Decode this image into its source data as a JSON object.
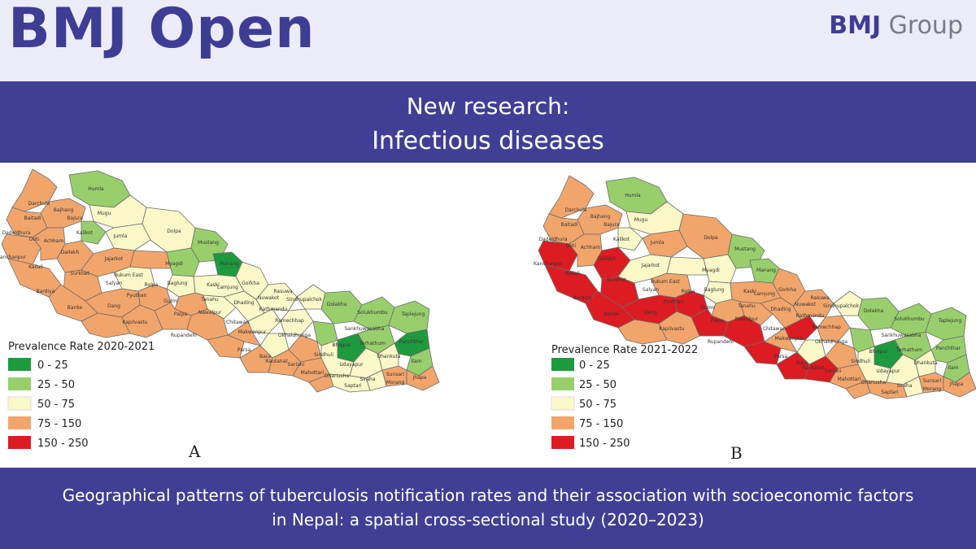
{
  "header": {
    "journal_title": "BMJ Open",
    "publisher_bold": "BMJ",
    "publisher_rest": "Group"
  },
  "banner": {
    "line1": "New research:",
    "line2": "Infectious diseases"
  },
  "legend_classes": [
    {
      "label": "0 - 25",
      "color": "#1e9a3e"
    },
    {
      "label": "25 - 50",
      "color": "#98cf6c"
    },
    {
      "label": "50 - 75",
      "color": "#fbf8c8"
    },
    {
      "label": "75 - 150",
      "color": "#f2a56b"
    },
    {
      "label": "150 - 250",
      "color": "#dc1c22"
    }
  ],
  "maps": [
    {
      "legend_title": "Prevalence Rate 2020-2021",
      "panel_label": "A"
    },
    {
      "legend_title": "Prevalence Rate 2021-2022",
      "panel_label": "B"
    }
  ],
  "district_labels": [
    "Humla",
    "Darchula",
    "Bajhang",
    "Mugu",
    "Baitadi",
    "Bajura",
    "Dadeldhura",
    "Doti",
    "Achham",
    "Kalikot",
    "Jumla",
    "Dolpa",
    "Kanchanpur",
    "Kailali",
    "Dailekh",
    "Jajarkot",
    "Mustang",
    "Surkhet",
    "Rukum East",
    "Myagdi",
    "Manang",
    "Bardiya",
    "Salyan",
    "Rolpa",
    "Baglung",
    "Kaski",
    "Lamjung",
    "Gorkha",
    "Rasuwa",
    "Banke",
    "Pyuthan",
    "Dang",
    "Gulmi",
    "Tanahu",
    "Dhading",
    "Nuwakot",
    "Sindhupalchok",
    "Dolakha",
    "Solukhumbu",
    "Taplejung",
    "Kapilvastu",
    "Palpa",
    "Nawalpur",
    "Chitawan",
    "Kathmandu",
    "Ramechhap",
    "Sankhuwasabha",
    "Rupandehi",
    "Makwanpur",
    "Okhaldhunga",
    "Bhojpur",
    "Terhathum",
    "Panchthar",
    "Parsa",
    "Bara",
    "Rautahat",
    "Sarlahi",
    "Sindhuli",
    "Udayapur",
    "Dhankuta",
    "Ilam",
    "Mahottari",
    "Dhanusha",
    "Siraha",
    "Saptari",
    "Sunsari",
    "Morang",
    "Jhapa"
  ],
  "footer": {
    "line1": "Geographical patterns of tuberculosis notification rates and their association with socioeconomic factors",
    "line2": "in Nepal: a spatial cross-sectional study (2020–2023)"
  }
}
